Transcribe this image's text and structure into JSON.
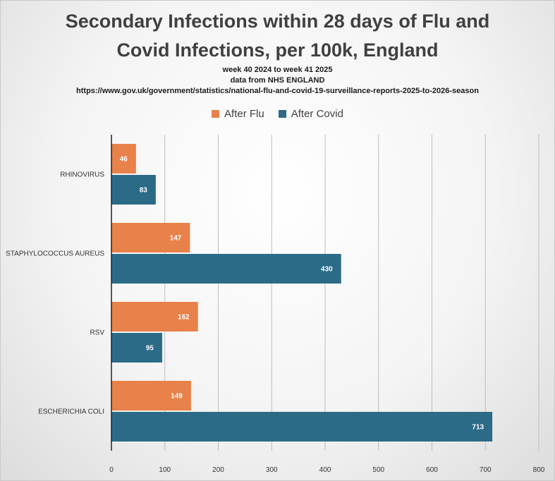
{
  "title_line1": "Secondary Infections within 28 days of Flu and",
  "title_line2": "Covid Infections, per 100k, England",
  "subtitle_line1": "week 40 2024 to week 41 2025",
  "subtitle_line2": "data from NHS ENGLAND",
  "subtitle_line3": "https://www.gov.uk/government/statistics/national-flu-and-covid-19-surveillance-reports-2025-to-2026-season",
  "legend": {
    "flu": "After Flu",
    "covid": "After Covid"
  },
  "colors": {
    "flu": "#e8814a",
    "covid": "#2b6b87",
    "grid": "#bdbdbd",
    "axis": "#222222"
  },
  "chart_data": {
    "type": "bar",
    "orientation": "horizontal",
    "title": "Secondary Infections within 28 days of Flu and Covid Infections, per 100k, England",
    "categories": [
      "RHINOVIRUS",
      "STAPHYLOCOCCUS AUREUS",
      "RSV",
      "ESCHERICHIA COLI"
    ],
    "series": [
      {
        "name": "After Flu",
        "values": [
          46,
          147,
          162,
          149
        ]
      },
      {
        "name": "After Covid",
        "values": [
          83,
          430,
          95,
          713
        ]
      }
    ],
    "xlim": [
      0,
      800
    ],
    "xticks": [
      0,
      100,
      200,
      300,
      400,
      500,
      600,
      700,
      800
    ],
    "xlabel": "",
    "ylabel": "",
    "grid": true,
    "legend_position": "top"
  }
}
